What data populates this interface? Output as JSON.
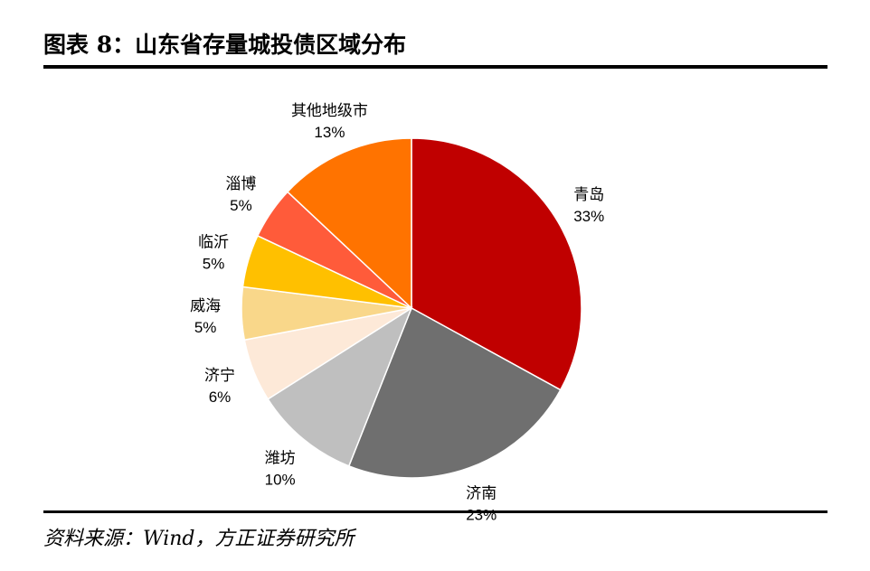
{
  "chart_data": {
    "type": "pie",
    "title": "图表 8：山东省存量城投债区域分布",
    "source": "资料来源：Wind，方正证券研究所",
    "categories": [
      "青岛",
      "济南",
      "潍坊",
      "济宁",
      "威海",
      "临沂",
      "淄博",
      "其他地级市"
    ],
    "values": [
      33,
      23,
      10,
      6,
      5,
      5,
      5,
      13
    ],
    "value_labels": [
      "33%",
      "23%",
      "10%",
      "6%",
      "5%",
      "5%",
      "5%",
      "13%"
    ],
    "colors": [
      "#c00000",
      "#6f6f6f",
      "#bfbfbf",
      "#fde9d8",
      "#f9d78a",
      "#ffc000",
      "#ff5b3a",
      "#ff7300"
    ]
  }
}
